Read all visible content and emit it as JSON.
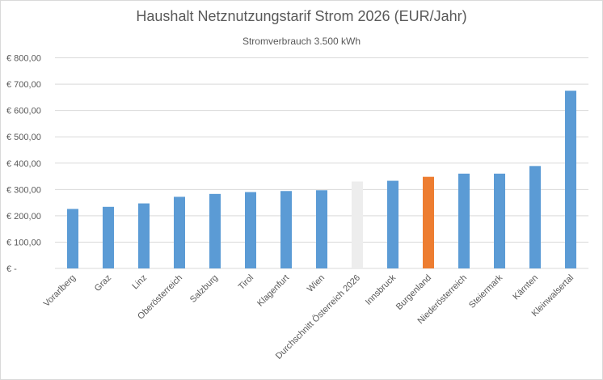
{
  "chart_data": {
    "type": "bar",
    "title": "Haushalt Netznutzungstarif Strom 2026 (EUR/Jahr)",
    "subtitle": "Stromverbrauch 3.500 kWh",
    "categories": [
      "Vorarlberg",
      "Graz",
      "Linz",
      "Oberösterreich",
      "Salzburg",
      "Tirol",
      "Klagenfurt",
      "Wien",
      "Durchschnitt Österreich 2026",
      "Innsbruck",
      "Burgenland",
      "Niederösterreich",
      "Steiermark",
      "Kärnten",
      "Kleinwalsertal"
    ],
    "values": [
      226,
      234,
      247,
      272,
      283,
      290,
      294,
      297,
      330,
      333,
      348,
      360,
      360,
      389,
      675
    ],
    "colors": [
      "#5b9bd5",
      "#5b9bd5",
      "#5b9bd5",
      "#5b9bd5",
      "#5b9bd5",
      "#5b9bd5",
      "#5b9bd5",
      "#5b9bd5",
      "#ededed",
      "#5b9bd5",
      "#ed7d31",
      "#5b9bd5",
      "#5b9bd5",
      "#5b9bd5",
      "#5b9bd5"
    ],
    "ylim": [
      0,
      800
    ],
    "yticks": [
      0,
      100,
      200,
      300,
      400,
      500,
      600,
      700,
      800
    ],
    "ytick_labels": [
      "€ -",
      "€ 100,00",
      "€ 200,00",
      "€ 300,00",
      "€ 400,00",
      "€ 500,00",
      "€ 600,00",
      "€ 700,00",
      "€ 800,00"
    ],
    "grid": true,
    "legend": "none",
    "xlabel": "",
    "ylabel": ""
  }
}
